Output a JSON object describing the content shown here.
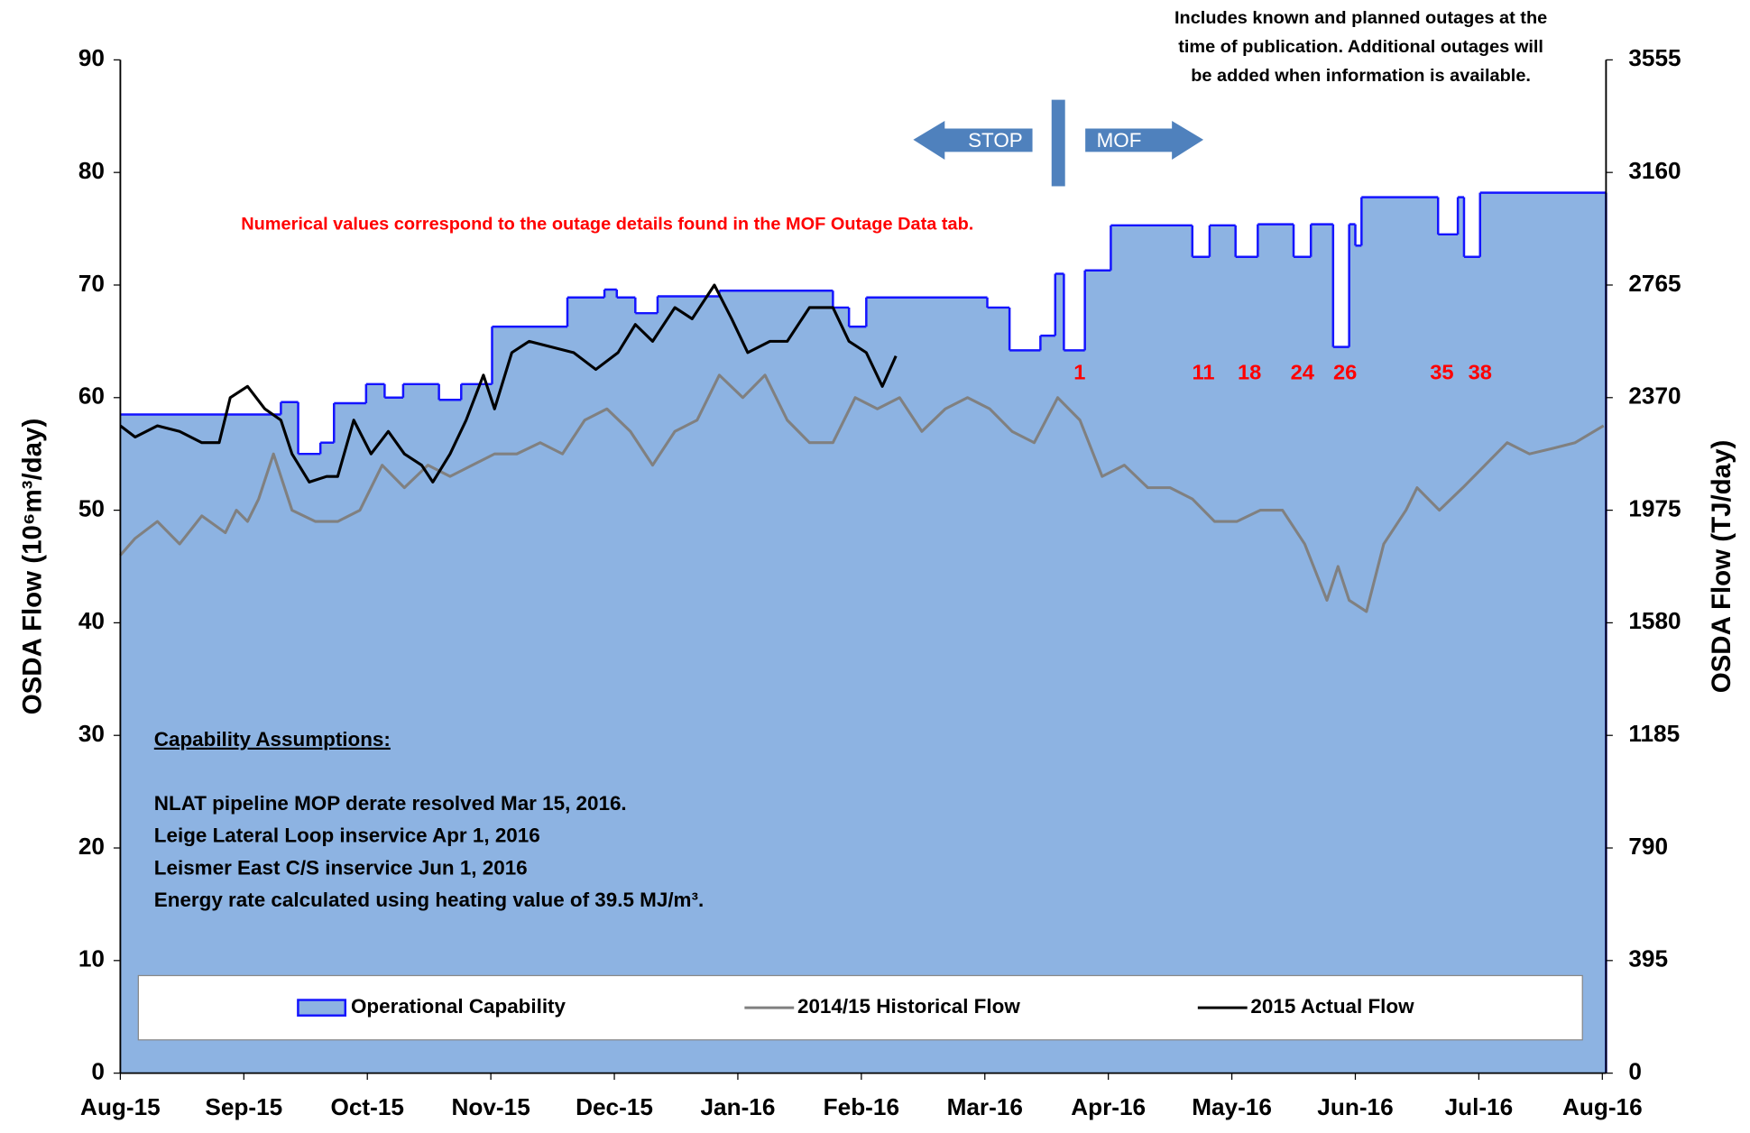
{
  "chart_data": {
    "type": "line",
    "y_label": "OSDA Flow (10⁶m³/day)",
    "y2_label": "OSDA Flow (TJ/day)",
    "xlim": [
      0,
      12.03
    ],
    "xticks": [
      {
        "value": 0,
        "label": "Aug-15"
      },
      {
        "value": 1,
        "label": "Sep-15"
      },
      {
        "value": 2,
        "label": "Oct-15"
      },
      {
        "value": 3,
        "label": "Nov-15"
      },
      {
        "value": 4,
        "label": "Dec-15"
      },
      {
        "value": 5,
        "label": "Jan-16"
      },
      {
        "value": 6,
        "label": "Feb-16"
      },
      {
        "value": 7,
        "label": "Mar-16"
      },
      {
        "value": 8,
        "label": "Apr-16"
      },
      {
        "value": 9,
        "label": "May-16"
      },
      {
        "value": 10,
        "label": "Jun-16"
      },
      {
        "value": 11,
        "label": "Jul-16"
      },
      {
        "value": 12,
        "label": "Aug-16"
      }
    ],
    "ylim": [
      0,
      90
    ],
    "yticks": [
      0,
      10,
      20,
      30,
      40,
      50,
      60,
      70,
      80,
      90
    ],
    "y2lim": [
      0,
      3555
    ],
    "y2ticks": [
      0,
      395,
      790,
      1185,
      1580,
      1975,
      2370,
      2765,
      3160,
      3555
    ],
    "legend": "bottom",
    "series": [
      {
        "name": "Operational Capability",
        "color": "#8db3e2",
        "edge_color": "#1414ff",
        "step": true,
        "fill": true,
        "x": [
          0,
          1.3,
          1.44,
          1.62,
          1.73,
          1.99,
          2.14,
          2.29,
          2.58,
          2.76,
          3.01,
          3.62,
          3.92,
          4.02,
          4.17,
          4.35,
          4.85,
          5.77,
          5.9,
          6.04,
          7.02,
          7.2,
          7.45,
          7.57,
          7.64,
          7.81,
          8.02,
          8.68,
          8.82,
          9.03,
          9.21,
          9.5,
          9.64,
          9.82,
          9.95,
          10.0,
          10.05,
          10.67,
          10.83,
          10.88,
          11.01
        ],
        "values": [
          58.5,
          59.6,
          55,
          56,
          59.5,
          61.2,
          60,
          61.2,
          59.8,
          61.2,
          66.3,
          68.9,
          69.6,
          68.9,
          67.5,
          69,
          69.5,
          68,
          66.3,
          68.9,
          68,
          64.2,
          65.5,
          71,
          64.2,
          71.3,
          75.3,
          72.5,
          75.3,
          72.5,
          75.4,
          72.5,
          75.4,
          64.5,
          75.4,
          73.5,
          77.8,
          74.5,
          77.8,
          72.5,
          78.2
        ]
      },
      {
        "name": "2014/15 Historical Flow",
        "color": "#808080",
        "x": [
          0,
          0.12,
          0.3,
          0.48,
          0.66,
          0.85,
          0.94,
          1.03,
          1.12,
          1.24,
          1.39,
          1.58,
          1.76,
          1.94,
          2.12,
          2.3,
          2.49,
          2.67,
          2.85,
          3.03,
          3.21,
          3.4,
          3.58,
          3.76,
          3.94,
          4.13,
          4.31,
          4.49,
          4.67,
          4.85,
          5.04,
          5.22,
          5.4,
          5.58,
          5.77,
          5.95,
          6.13,
          6.31,
          6.49,
          6.68,
          6.86,
          7.04,
          7.22,
          7.4,
          7.59,
          7.77,
          7.95,
          8.13,
          8.32,
          8.5,
          8.68,
          8.86,
          9.04,
          9.23,
          9.41,
          9.59,
          9.77,
          9.86,
          9.95,
          10.09,
          10.23,
          10.41,
          10.5,
          10.68,
          10.87,
          11.05,
          11.23,
          11.41,
          11.6,
          11.78,
          12.01
        ],
        "values": [
          46,
          47.5,
          49,
          47,
          49.5,
          48,
          50,
          49,
          51,
          55,
          50,
          49,
          49,
          50,
          54,
          52,
          54,
          53,
          54,
          55,
          55,
          56,
          55,
          58,
          59,
          57,
          54,
          57,
          58,
          62,
          60,
          62,
          58,
          56,
          56,
          60,
          59,
          60,
          57,
          59,
          60,
          59,
          57,
          56,
          60,
          58,
          53,
          54,
          52,
          52,
          51,
          49,
          49,
          50,
          50,
          47,
          42,
          45,
          42,
          41,
          47,
          50,
          52,
          50,
          52,
          54,
          56,
          55,
          55.5,
          56,
          57.5
        ]
      },
      {
        "name": "2015 Actual Flow",
        "color": "#000000",
        "x": [
          0,
          0.12,
          0.3,
          0.48,
          0.66,
          0.8,
          0.89,
          1.03,
          1.17,
          1.3,
          1.39,
          1.53,
          1.67,
          1.76,
          1.89,
          2.03,
          2.17,
          2.3,
          2.44,
          2.53,
          2.67,
          2.8,
          2.94,
          3.03,
          3.17,
          3.31,
          3.49,
          3.67,
          3.85,
          4.03,
          4.17,
          4.31,
          4.49,
          4.63,
          4.81,
          4.95,
          5.08,
          5.26,
          5.4,
          5.58,
          5.77,
          5.9,
          6.04,
          6.17,
          6.28
        ],
        "values": [
          57.5,
          56.5,
          57.5,
          57,
          56,
          56,
          60,
          61,
          59,
          58,
          55,
          52.5,
          53,
          53,
          58,
          55,
          57,
          55,
          54,
          52.5,
          55,
          58,
          62,
          59,
          64,
          65,
          64.5,
          64,
          62.5,
          64,
          66.5,
          65,
          68,
          67,
          70,
          67,
          64,
          65,
          65,
          68,
          68,
          65,
          64,
          61,
          63.7
        ]
      }
    ],
    "annotations": {
      "note": [
        "Includes known and planned outages at the",
        "time of publication.  Additional outages will",
        "be added when information is available."
      ],
      "outage_note": "Numerical values correspond to the outage details found in the MOF Outage Data tab.",
      "outage_labels": [
        "1",
        "11",
        "18",
        "24",
        "26",
        "35",
        "38"
      ],
      "assumptions_title": "Capability Assumptions:",
      "assumptions": [
        "NLAT pipeline MOP derate resolved Mar 15, 2016.",
        "Leige Lateral Loop inservice Apr 1, 2016",
        "Leismer East C/S inservice Jun 1, 2016",
        "Energy rate calculated using heating value of 39.5 MJ/m³."
      ],
      "direction_labels": [
        "STOP",
        "MOF"
      ]
    }
  }
}
